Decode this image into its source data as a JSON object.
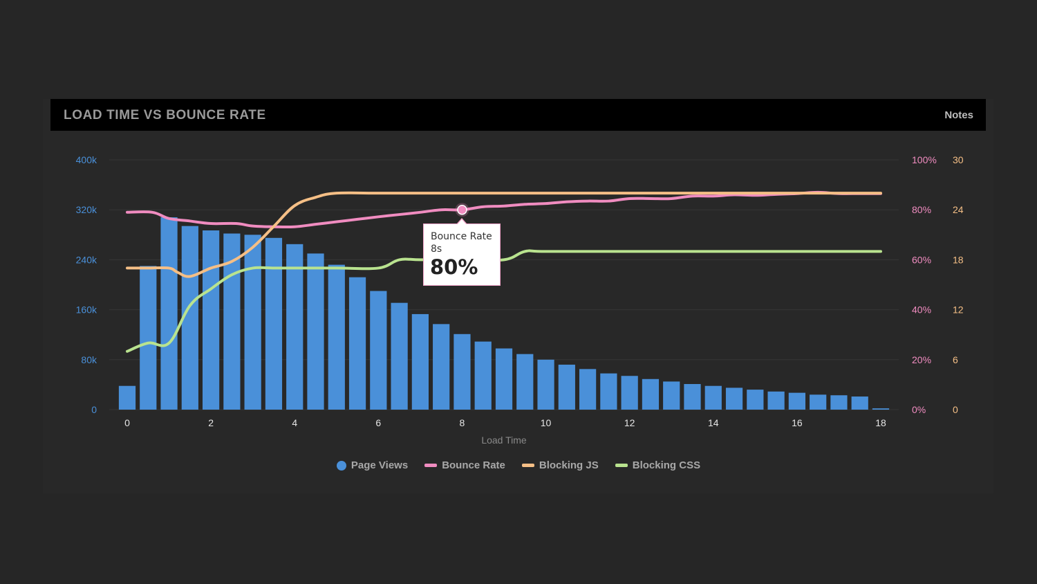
{
  "header": {
    "title": "LOAD TIME VS BOUNCE RATE",
    "notes_label": "Notes"
  },
  "colors": {
    "page_views": "#4a90d9",
    "bounce_rate": "#f08cc0",
    "blocking_js": "#f5bf86",
    "blocking_css": "#b9e38f",
    "left_axis": "#4a90d9",
    "pct_axis": "#f08cc0",
    "count_axis": "#f5bf86",
    "grid": "#363636"
  },
  "tooltip": {
    "series": "Bounce Rate",
    "x": "8s",
    "value": "80%"
  },
  "chart_data": {
    "type": "bar+line",
    "xlabel": "Load Time",
    "x_ticks": [
      "0",
      "2",
      "4",
      "6",
      "8",
      "10",
      "12",
      "14",
      "16",
      "18"
    ],
    "xlim": [
      0,
      18
    ],
    "left_axis": {
      "ticks": [
        "0",
        "80k",
        "160k",
        "240k",
        "320k",
        "400k"
      ],
      "ylim": [
        0,
        400000
      ]
    },
    "right_axis_pct": {
      "ticks": [
        "0%",
        "20%",
        "40%",
        "60%",
        "80%",
        "100%"
      ],
      "ylim": [
        0,
        100
      ]
    },
    "right_axis_count": {
      "ticks": [
        "0",
        "6",
        "12",
        "18",
        "24",
        "30"
      ],
      "ylim": [
        0,
        30
      ]
    },
    "legend": [
      "Page Views",
      "Bounce Rate",
      "Blocking JS",
      "Blocking CSS"
    ],
    "legend_position": "bottom",
    "grid": true,
    "series": [
      {
        "name": "Page Views",
        "type": "bar",
        "axis": "left",
        "x": [
          0,
          0.5,
          1,
          1.5,
          2,
          2.5,
          3,
          3.5,
          4,
          4.5,
          5,
          5.5,
          6,
          6.5,
          7,
          7.5,
          8,
          8.5,
          9,
          9.5,
          10,
          10.5,
          11,
          11.5,
          12,
          12.5,
          13,
          13.5,
          14,
          14.5,
          15,
          15.5,
          16,
          16.5,
          17,
          17.5,
          18
        ],
        "values": [
          38000,
          230000,
          308000,
          294000,
          287000,
          282000,
          280000,
          275000,
          265000,
          250000,
          232000,
          212000,
          190000,
          171000,
          153000,
          137000,
          121000,
          109000,
          98000,
          89000,
          80000,
          72000,
          65000,
          58000,
          54000,
          49000,
          45000,
          41000,
          38000,
          35000,
          32000,
          29000,
          27000,
          24000,
          23000,
          21000,
          2000
        ]
      },
      {
        "name": "Bounce Rate",
        "type": "line",
        "axis": "pct",
        "x": [
          0,
          0.6,
          1,
          1.5,
          2,
          2.6,
          3,
          3.5,
          4,
          4.5,
          5,
          5.5,
          6,
          6.5,
          7,
          7.5,
          8,
          8.5,
          9,
          9.5,
          10,
          10.5,
          11,
          11.5,
          12,
          12.5,
          13,
          13.5,
          14,
          14.5,
          15,
          15.5,
          16,
          16.5,
          17,
          17.5,
          18
        ],
        "values": [
          79,
          79,
          76.5,
          75.5,
          74.5,
          74.5,
          73.5,
          73.2,
          73.2,
          74.2,
          75.2,
          76.2,
          77.2,
          78.1,
          79,
          80,
          80,
          81.2,
          81.5,
          82.2,
          82.5,
          83.2,
          83.5,
          83.5,
          84.5,
          84.5,
          84.5,
          85.5,
          85.5,
          86,
          85.8,
          86.2,
          86.5,
          87,
          86.5,
          86.5,
          86.5
        ]
      },
      {
        "name": "Blocking JS",
        "type": "line",
        "axis": "count",
        "x": [
          0,
          0.5,
          1,
          1.2,
          1.5,
          2,
          2.5,
          3,
          3.5,
          4,
          4.5,
          5,
          6,
          8,
          10,
          12,
          14,
          16,
          18
        ],
        "values": [
          17,
          17,
          17,
          16.5,
          16,
          17,
          17.8,
          19.5,
          22,
          24.5,
          25.5,
          26,
          26,
          26,
          26,
          26,
          26,
          26,
          26
        ]
      },
      {
        "name": "Blocking CSS",
        "type": "line",
        "axis": "count",
        "x": [
          0,
          0.5,
          1,
          1.5,
          2,
          2.5,
          3,
          3.5,
          4,
          5,
          6,
          6.5,
          7,
          8,
          9,
          9.5,
          10,
          12,
          14,
          16,
          18
        ],
        "values": [
          7,
          8,
          8,
          12.5,
          14.5,
          16.2,
          17,
          17,
          17,
          17,
          17,
          18,
          18,
          18,
          18,
          19,
          19,
          19,
          19,
          19,
          19
        ]
      }
    ]
  },
  "legend": [
    {
      "label": "Page Views",
      "shape": "dot",
      "color": "#4a90d9"
    },
    {
      "label": "Bounce Rate",
      "shape": "line",
      "color": "#f08cc0"
    },
    {
      "label": "Blocking JS",
      "shape": "line",
      "color": "#f5bf86"
    },
    {
      "label": "Blocking CSS",
      "shape": "line",
      "color": "#b9e38f"
    }
  ]
}
